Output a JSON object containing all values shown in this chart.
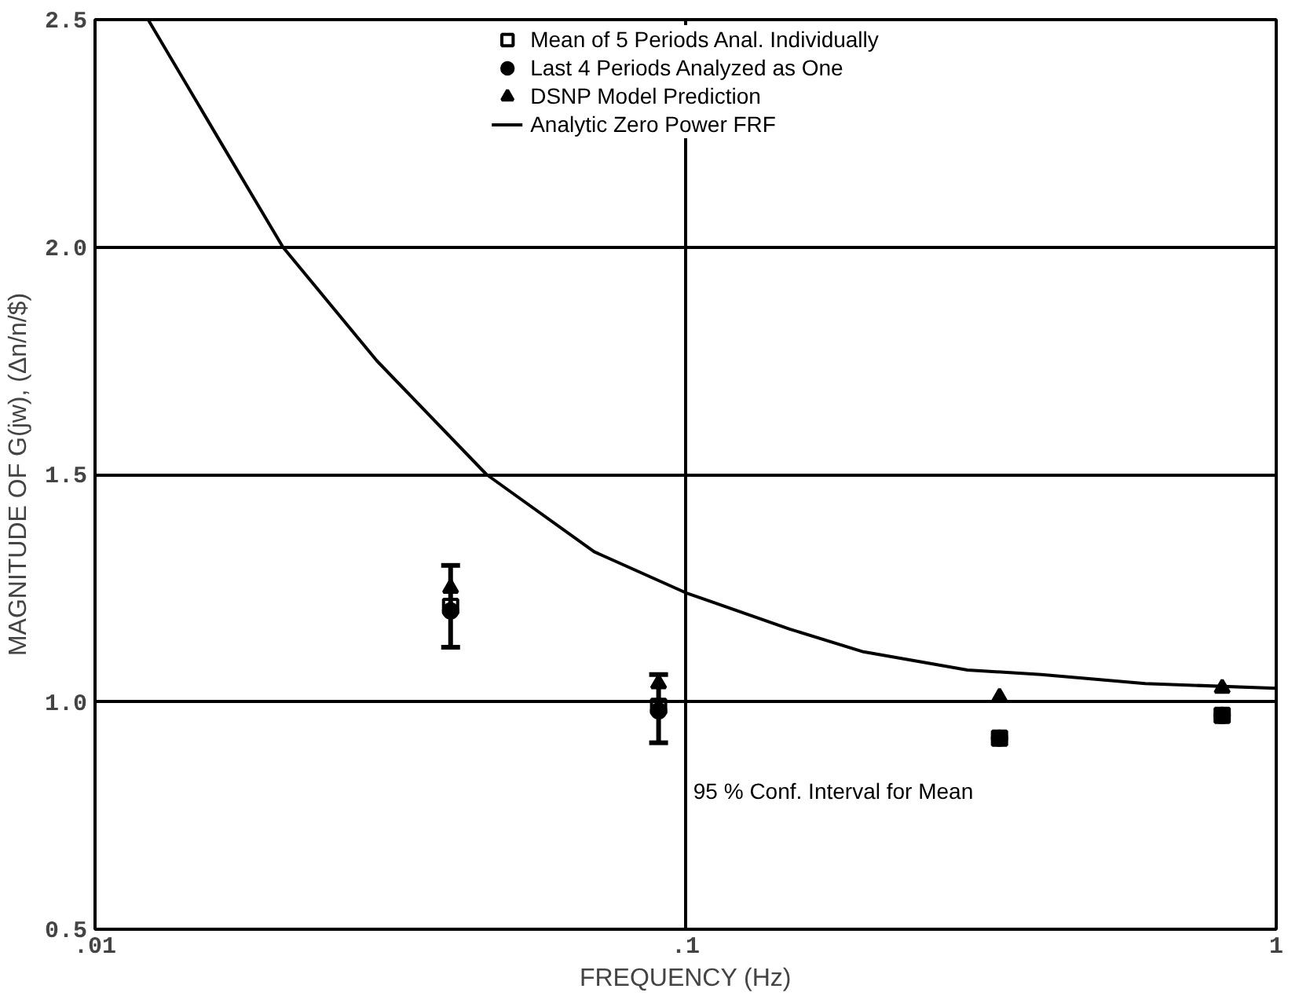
{
  "chart_data": {
    "type": "scatter",
    "xlabel": "FREQUENCY (Hz)",
    "ylabel": "MAGNITUDE OF G(jw), (Δn/n/$)",
    "log": "x",
    "xlim": [
      0.01,
      1
    ],
    "ylim": [
      0.5,
      2.5
    ],
    "xticks": [
      {
        "value": 0.01,
        "label": ".01"
      },
      {
        "value": 0.1,
        "label": ".1"
      },
      1
    ],
    "yticks": [
      {
        "value": 0.5,
        "label": "0.5"
      },
      {
        "value": 1.0,
        "label": "1.0"
      },
      1.5,
      {
        "value": 2.0,
        "label": "2.0"
      },
      2.5
    ],
    "grid": true,
    "legend": "top",
    "series": [
      {
        "name": "Mean of 5 Periods Anal. Individually",
        "color": "#000000",
        "marker": "square",
        "x": [
          0.04,
          0.09,
          0.34,
          0.81
        ],
        "values": [
          1.21,
          0.99,
          0.92,
          0.97
        ],
        "errors": [
          [
            1.12,
            1.3
          ],
          [
            0.91,
            1.06
          ],
          null,
          null
        ]
      },
      {
        "name": "Last 4 Periods Analyzed as One",
        "color": "#000000",
        "marker": "circle",
        "x": [
          0.04,
          0.09,
          0.34,
          0.81
        ],
        "values": [
          1.2,
          0.98,
          0.92,
          0.97
        ]
      },
      {
        "name": "DSNP Model Prediction",
        "color": "#000000",
        "marker": "triangle",
        "x": [
          0.04,
          0.09,
          0.34,
          0.81
        ],
        "values": [
          1.25,
          1.04,
          1.01,
          1.03
        ]
      },
      {
        "name": "Analytic Zero Power FRF",
        "color": "#000000",
        "type": "line",
        "x": [
          0.0123,
          0.0165,
          0.0208,
          0.03,
          0.046,
          0.07,
          0.1,
          0.15,
          0.2,
          0.3,
          0.4,
          0.6,
          1
        ],
        "values": [
          2.5,
          2.22,
          2.0,
          1.75,
          1.5,
          1.33,
          1.24,
          1.16,
          1.11,
          1.07,
          1.06,
          1.04,
          1.03
        ]
      }
    ],
    "annotations": [
      "95 % Conf. Interval for Mean"
    ]
  }
}
